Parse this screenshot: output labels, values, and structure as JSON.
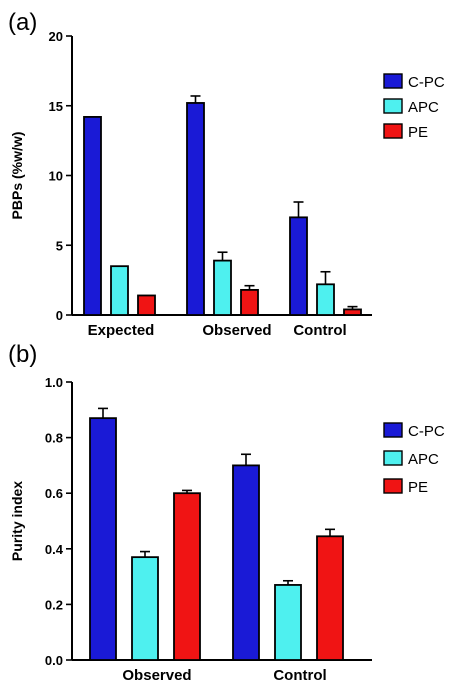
{
  "chart_data": [
    {
      "type": "bar",
      "panel_label": "(a)",
      "categories": [
        "Expected",
        "Observed",
        "Control"
      ],
      "ylabel": "PBPs (%w/w)",
      "ylim": [
        0,
        20
      ],
      "yticks": [
        0,
        5,
        10,
        15,
        20
      ],
      "legend_position": "right",
      "series": [
        {
          "name": "C-PC",
          "color": "#1a1ad6",
          "values": [
            14.2,
            15.2,
            7.0
          ],
          "errors": [
            0,
            0.5,
            1.1
          ]
        },
        {
          "name": "APC",
          "color": "#4ef0ef",
          "values": [
            3.5,
            3.9,
            2.2
          ],
          "errors": [
            0,
            0.6,
            0.9
          ]
        },
        {
          "name": "PE",
          "color": "#f01414",
          "values": [
            1.4,
            1.8,
            0.4
          ],
          "errors": [
            0,
            0.3,
            0.2
          ]
        }
      ]
    },
    {
      "type": "bar",
      "panel_label": "(b)",
      "categories": [
        "Observed",
        "Control"
      ],
      "ylabel": "Purity index",
      "ylim": [
        0,
        1.0
      ],
      "yticks": [
        "0.0",
        "0.2",
        "0.4",
        "0.6",
        "0.8",
        "1.0"
      ],
      "legend_position": "right",
      "series": [
        {
          "name": "C-PC",
          "color": "#1a1ad6",
          "values": [
            0.87,
            0.7
          ],
          "errors": [
            0.035,
            0.04
          ]
        },
        {
          "name": "APC",
          "color": "#4ef0ef",
          "values": [
            0.37,
            0.27
          ],
          "errors": [
            0.02,
            0.015
          ]
        },
        {
          "name": "PE",
          "color": "#f01414",
          "values": [
            0.6,
            0.445
          ],
          "errors": [
            0.01,
            0.025
          ]
        }
      ]
    }
  ]
}
